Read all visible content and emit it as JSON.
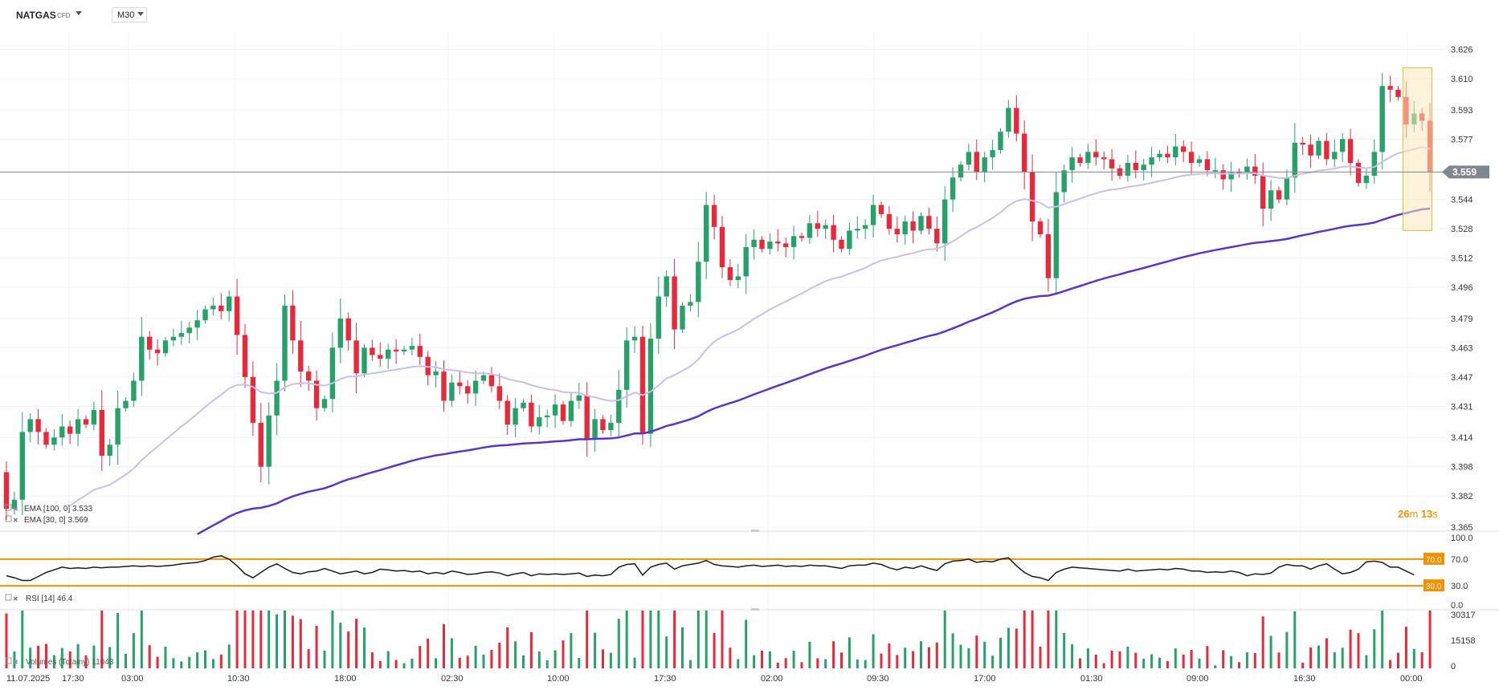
{
  "header": {
    "symbol": "NATGAS",
    "symbol_type": "CFD",
    "timeframe": "M30"
  },
  "colors": {
    "bull": "#26a269",
    "bear": "#e8293b",
    "ema100": "#5b35c9",
    "ema30": "#c9bfe8",
    "rsi_level": "#f39200",
    "price_tag": "#7f8891",
    "countdown": "#f39200",
    "highlight": "#fbe9bb"
  },
  "chart_data": [
    {
      "type": "candlestick",
      "title": "NATGAS CFD M30",
      "y_ticks": [
        "3.626",
        "3.610",
        "3.593",
        "3.577",
        "3.559",
        "3.544",
        "3.528",
        "3.512",
        "3.496",
        "3.479",
        "3.463",
        "3.447",
        "3.431",
        "3.414",
        "3.398",
        "3.382",
        "3.365"
      ],
      "ylim": [
        3.365,
        3.628
      ],
      "current_price": "3.559",
      "x_ticks": [
        "11.07.2025",
        "17:30",
        "03:00",
        "10:30",
        "18:00",
        "02:30",
        "10:00",
        "17:30",
        "02:00",
        "09:30",
        "17:00",
        "01:30",
        "09:00",
        "16:30",
        "00:00"
      ],
      "grid": true,
      "countdown": {
        "minutes": "26",
        "min_unit": "m",
        "seconds": "13",
        "sec_unit": "s"
      },
      "legend": [
        {
          "name": "EMA",
          "params": "[100,  0]",
          "value": "3.533"
        },
        {
          "name": "EMA",
          "params": "[30,  0]",
          "value": "3.569"
        }
      ],
      "close": [
        3.375,
        3.38,
        3.417,
        3.424,
        3.417,
        3.41,
        3.414,
        3.42,
        3.416,
        3.424,
        3.421,
        3.429,
        3.404,
        3.41,
        3.43,
        3.434,
        3.445,
        3.469,
        3.462,
        3.46,
        3.467,
        3.469,
        3.471,
        3.474,
        3.478,
        3.484,
        3.486,
        3.483,
        3.491,
        3.47,
        3.447,
        3.422,
        3.398,
        3.426,
        3.445,
        3.486,
        3.467,
        3.45,
        3.445,
        3.43,
        3.435,
        3.463,
        3.479,
        3.467,
        3.449,
        3.463,
        3.459,
        3.457,
        3.462,
        3.461,
        3.462,
        3.464,
        3.458,
        3.448,
        3.45,
        3.434,
        3.444,
        3.442,
        3.438,
        3.445,
        3.448,
        3.442,
        3.434,
        3.421,
        3.43,
        3.433,
        3.42,
        3.425,
        3.426,
        3.432,
        3.423,
        3.434,
        3.437,
        3.413,
        3.424,
        3.418,
        3.422,
        3.44,
        3.467,
        3.469,
        3.416,
        3.468,
        3.491,
        3.502,
        3.473,
        3.486,
        3.488,
        3.51,
        3.541,
        3.529,
        3.507,
        3.5,
        3.502,
        3.518,
        3.522,
        3.517,
        3.521,
        3.52,
        3.518,
        3.524,
        3.523,
        3.531,
        3.528,
        3.53,
        3.522,
        3.517,
        3.527,
        3.528,
        3.53,
        3.541,
        3.536,
        3.528,
        3.525,
        3.532,
        3.527,
        3.535,
        3.528,
        3.52,
        3.544,
        3.556,
        3.563,
        3.57,
        3.559,
        3.567,
        3.571,
        3.581,
        3.594,
        3.58,
        3.559,
        3.532,
        3.525,
        3.501,
        3.548,
        3.56,
        3.567,
        3.564,
        3.57,
        3.567,
        3.566,
        3.561,
        3.557,
        3.564,
        3.56,
        3.563,
        3.567,
        3.569,
        3.567,
        3.573,
        3.57,
        3.564,
        3.566,
        3.56,
        3.56,
        3.555,
        3.559,
        3.558,
        3.562,
        3.557,
        3.539,
        3.549,
        3.544,
        3.556,
        3.575,
        3.574,
        3.568,
        3.576,
        3.566,
        3.57,
        3.577,
        3.564,
        3.553,
        3.557,
        3.57,
        3.606,
        3.604,
        3.6,
        3.585,
        3.591,
        3.587,
        3.559
      ]
    },
    {
      "type": "line",
      "title": "RSI",
      "legend": "RSI [14] 46.4",
      "levels": [
        "70.0",
        "30.0"
      ],
      "y_ticks": [
        "100.0",
        "70.0",
        "30.0",
        "0.0"
      ],
      "ylim": [
        0,
        100
      ],
      "values": [
        45,
        42,
        38,
        38,
        44,
        50,
        54,
        58,
        56,
        57,
        56,
        58,
        57,
        58,
        58,
        59,
        60,
        59,
        60,
        59,
        60,
        61,
        63,
        64,
        65,
        68,
        73,
        75,
        70,
        60,
        48,
        42,
        50,
        58,
        63,
        56,
        50,
        48,
        51,
        52,
        56,
        52,
        48,
        50,
        52,
        48,
        50,
        55,
        54,
        52,
        53,
        51,
        52,
        48,
        50,
        48,
        52,
        50,
        47,
        48,
        50,
        51,
        49,
        45,
        48,
        50,
        45,
        48,
        47,
        48,
        47,
        48,
        49,
        44,
        46,
        45,
        47,
        58,
        62,
        63,
        46,
        58,
        62,
        64,
        55,
        60,
        62,
        64,
        68,
        62,
        60,
        59,
        58,
        60,
        61,
        59,
        60,
        61,
        59,
        60,
        59,
        61,
        60,
        60,
        58,
        56,
        60,
        61,
        61,
        64,
        62,
        57,
        54,
        58,
        56,
        60,
        56,
        53,
        63,
        67,
        68,
        70,
        65,
        67,
        66,
        70,
        72,
        60,
        50,
        44,
        42,
        38,
        50,
        55,
        58,
        57,
        56,
        55,
        54,
        53,
        52,
        55,
        52,
        53,
        54,
        55,
        54,
        56,
        55,
        52,
        52,
        50,
        51,
        50,
        52,
        50,
        45,
        48,
        47,
        49,
        58,
        62,
        60,
        60,
        55,
        60,
        63,
        55,
        48,
        50,
        55,
        66,
        67,
        65,
        58,
        58,
        52,
        46.4
      ]
    },
    {
      "type": "bar",
      "title": "Volumes",
      "legend": "Volumes (Totalny) 11043",
      "y_ticks": [
        "30317",
        "15158",
        "0"
      ],
      "ylim": [
        0,
        30317
      ]
    }
  ]
}
